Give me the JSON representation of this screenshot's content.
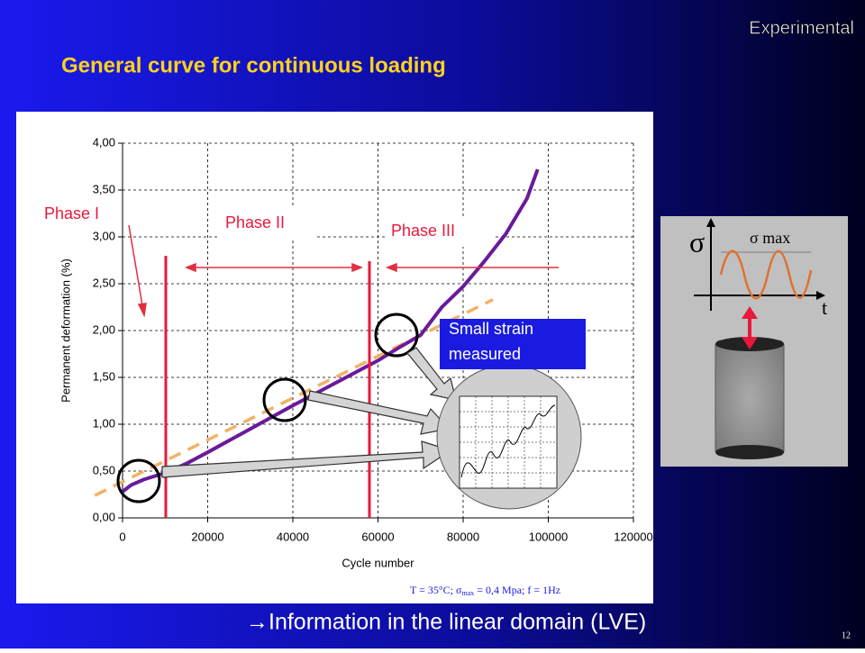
{
  "slide": {
    "corner": "Experimental",
    "title": "General curve for continuous loading",
    "conclusion": "→Information in the linear domain (LVE)",
    "page": "12",
    "diagram": {
      "sigma": "σ",
      "sigma_max": "σ max",
      "time": "t"
    }
  },
  "chart_data": {
    "type": "line",
    "xlabel": "Cycle number",
    "ylabel": "Permanent deformation (%)",
    "xlim": [
      0,
      120000
    ],
    "xticks": [
      0,
      20000,
      40000,
      60000,
      80000,
      100000,
      120000
    ],
    "ylim": [
      0,
      4
    ],
    "yticks": [
      {
        "value": 0,
        "label": "0,00"
      },
      {
        "value": 0.5,
        "label": "0,50"
      },
      {
        "value": 1,
        "label": "1,00"
      },
      {
        "value": 1.5,
        "label": "1,50"
      },
      {
        "value": 2,
        "label": "2,00"
      },
      {
        "value": 2.5,
        "label": "2,50"
      },
      {
        "value": 3,
        "label": "3,00"
      },
      {
        "value": 3.5,
        "label": "3,50"
      },
      {
        "value": 4,
        "label": "4,00"
      }
    ],
    "grid": true,
    "series": [
      {
        "color": "#f2b266",
        "dashed": true,
        "x": [
          -6500,
          87000
        ],
        "values": [
          0.24,
          2.33
        ]
      },
      {
        "color": "#6a1a9a",
        "dashed": false,
        "x": [
          0,
          2000,
          5000,
          10000,
          15000,
          20000,
          30000,
          40000,
          50000,
          60000,
          65000,
          70000,
          75000,
          80000,
          85000,
          90000,
          95000,
          97500
        ],
        "values": [
          0.28,
          0.35,
          0.41,
          0.48,
          0.58,
          0.7,
          0.95,
          1.2,
          1.44,
          1.68,
          1.82,
          1.95,
          2.25,
          2.47,
          2.74,
          3.03,
          3.41,
          3.72
        ]
      }
    ],
    "annotations": {
      "phase1": "Phase I",
      "phase2": "Phase II",
      "phase3": "Phase III",
      "small_strain": [
        "Small strain",
        "measured"
      ]
    },
    "note": [
      "T = 35°C;  σ",
      "max",
      " = 0,4 Mpa;  f = 1Hz"
    ]
  }
}
